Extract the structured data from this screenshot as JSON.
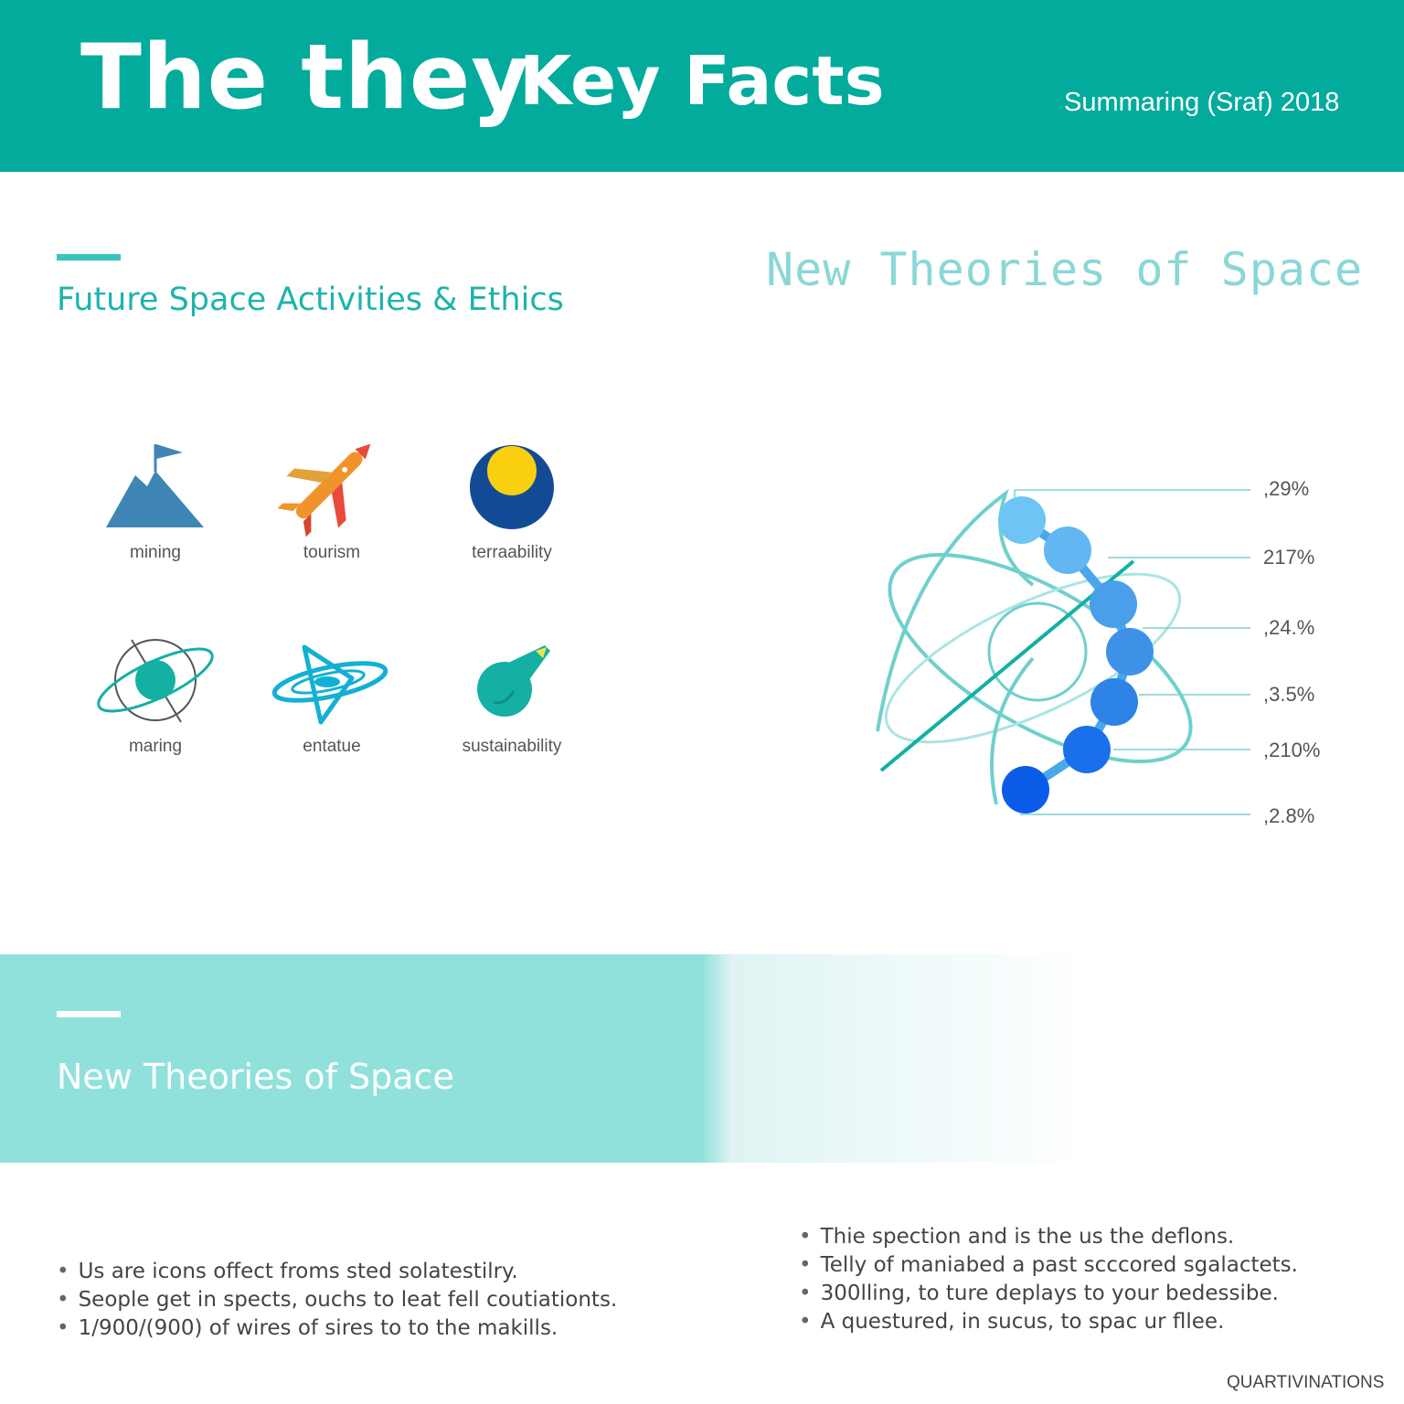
{
  "header": {
    "title_part1": "The they",
    "title_part2": "Key Facts",
    "subtitle": "Summaring (Sraf) 2018",
    "background_color": "#03ab9c"
  },
  "left_section": {
    "title": "Future Space Activities & Ethics",
    "accent_color": "#1db3ad",
    "icons": [
      {
        "label": "mining",
        "icon": "mountain-flag-icon"
      },
      {
        "label": "tourism",
        "icon": "rocket-plane-icon"
      },
      {
        "label": "terraability",
        "icon": "planet-sun-icon"
      },
      {
        "label": "maring",
        "icon": "ringed-planet-icon"
      },
      {
        "label": "entatue",
        "icon": "swirl-star-icon"
      },
      {
        "label": "sustainability",
        "icon": "comet-icon"
      }
    ]
  },
  "right_section": {
    "title": "New Theories of Space",
    "values": [
      ",29%",
      "217%",
      ",24.%",
      ",3.5%",
      ",210%",
      ",2.8%"
    ],
    "node_colors": [
      "#6ec5f5",
      "#62b7f2",
      "#4a9fea",
      "#3d92e8",
      "#2d83e8",
      "#1a70ea",
      "#0a5ce8"
    ]
  },
  "band": {
    "title": "New Theories of Space",
    "color": "#90e1db"
  },
  "bullets_left": [
    "Us are icons offect froms sted solatestilry.",
    "Seople get in spects, ouchs to leat fell coutiationts.",
    "1/900/(900) of wires of sires to to the makills."
  ],
  "bullets_right": [
    "Thie spection and is the us the deflons.",
    "Telly of maniabed a past scccored sgalactets.",
    "300lling, to ture deplays to your bedessibe.",
    "A questured, in sucus, to spac ur fllee."
  ],
  "footer": "QUARTIVINATIONS"
}
